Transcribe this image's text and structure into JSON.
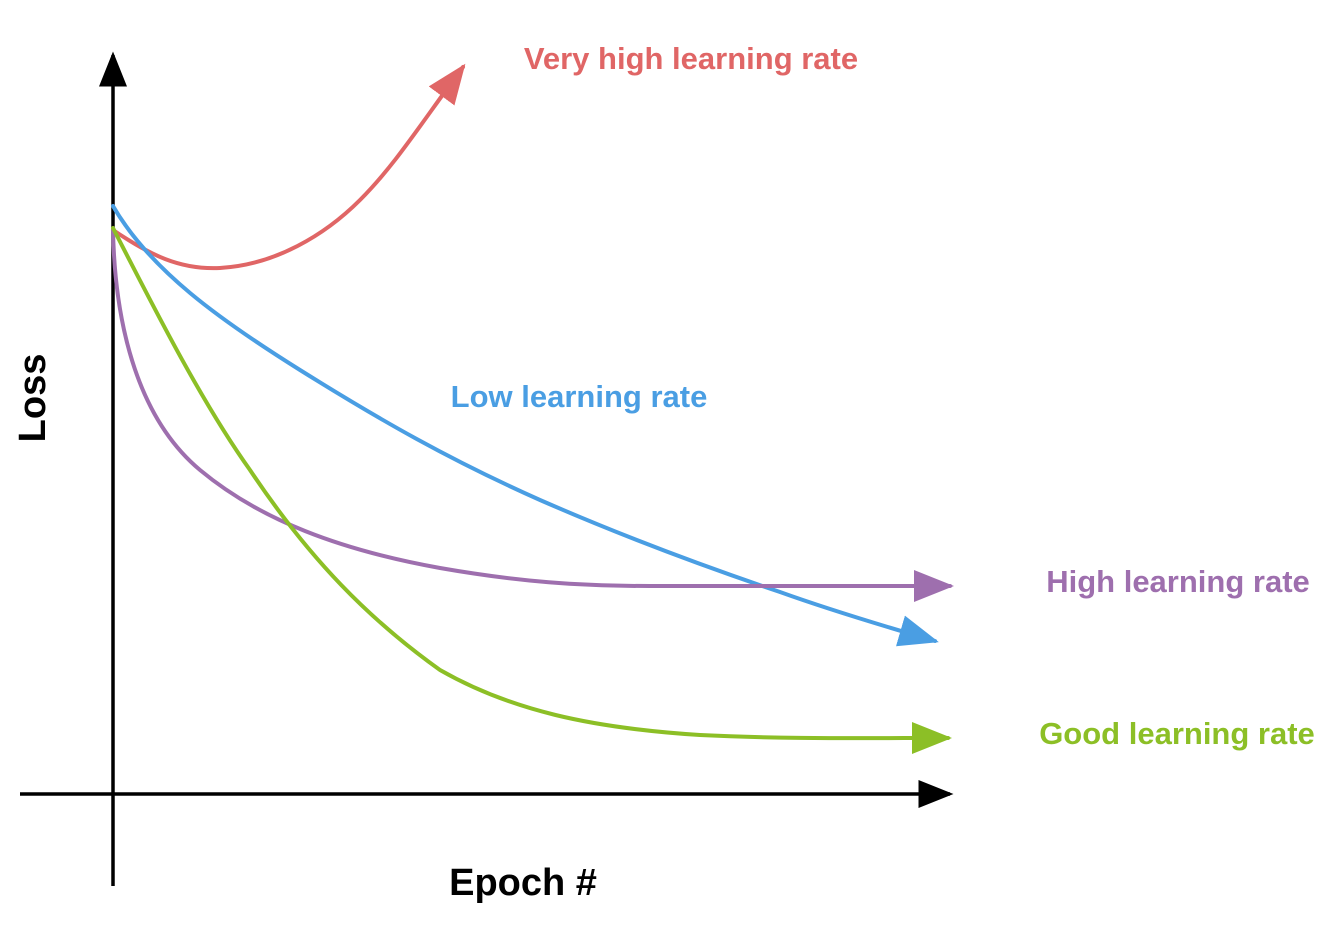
{
  "chart_data": {
    "type": "line",
    "title": "",
    "xlabel": "Epoch #",
    "ylabel": "Loss",
    "grid": false,
    "legend": "inline labels next to each curve",
    "axis_color": "#000000",
    "series": [
      {
        "id": "very_high",
        "name": "Very high learning rate",
        "color": "#e06666",
        "trend": "dips slightly then rises sharply",
        "x": [
          0,
          0.1,
          0.2,
          0.3,
          0.4
        ],
        "y": [
          0.72,
          0.69,
          0.71,
          0.8,
          0.97
        ]
      },
      {
        "id": "low",
        "name": "Low learning rate",
        "color": "#4a9ee3",
        "trend": "slow steady decrease",
        "x": [
          0,
          0.1,
          0.2,
          0.4,
          0.6,
          0.8,
          0.9
        ],
        "y": [
          0.75,
          0.66,
          0.58,
          0.46,
          0.35,
          0.25,
          0.21
        ]
      },
      {
        "id": "high",
        "name": "High learning rate",
        "color": "#9e6fae",
        "trend": "fast decrease then plateaus at a high loss",
        "x": [
          0,
          0.05,
          0.1,
          0.2,
          0.4,
          0.6,
          0.9
        ],
        "y": [
          0.72,
          0.55,
          0.45,
          0.36,
          0.31,
          0.3,
          0.3
        ]
      },
      {
        "id": "good",
        "name": "Good learning rate",
        "color": "#8cbf26",
        "trend": "steady decrease to the lowest plateau",
        "x": [
          0,
          0.1,
          0.2,
          0.3,
          0.4,
          0.5,
          0.6,
          0.7,
          0.9
        ],
        "y": [
          0.72,
          0.55,
          0.39,
          0.27,
          0.18,
          0.13,
          0.1,
          0.1,
          0.1
        ]
      }
    ]
  }
}
